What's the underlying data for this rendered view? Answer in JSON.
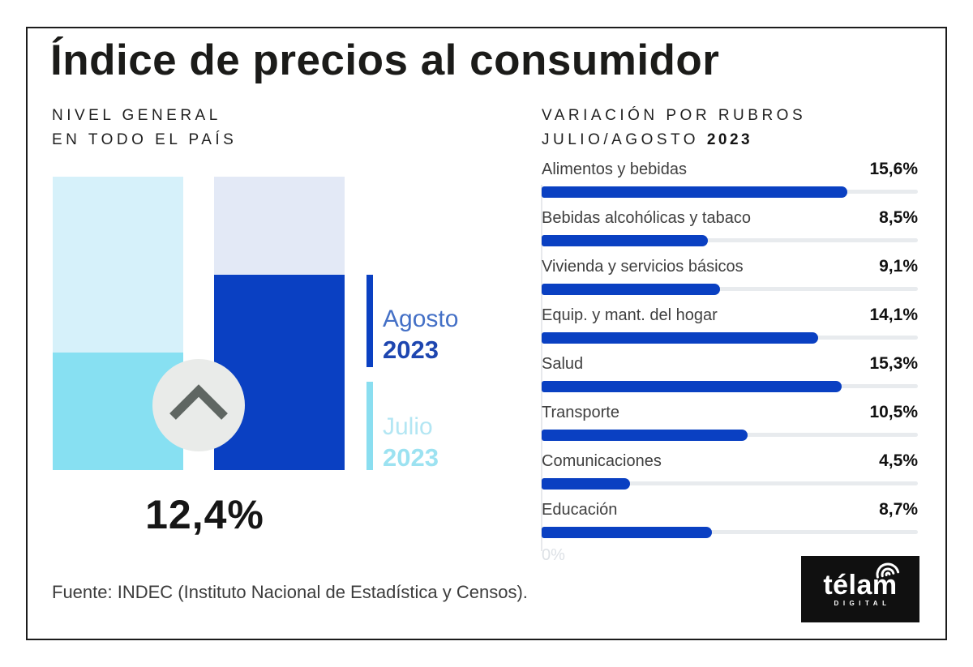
{
  "title": "Índice de precios al consumidor",
  "left_panel": {
    "subtitle_line1": "NIVEL GENERAL",
    "subtitle_line2": "EN TODO EL PAÍS",
    "value": "12,4%",
    "legend": [
      {
        "label": "Agosto",
        "year": "2023",
        "color": "#0a40c2"
      },
      {
        "label": "Julio",
        "year": "2023",
        "color": "#87e0f2"
      }
    ]
  },
  "right_panel": {
    "heading_line1": "VARIACIÓN POR RUBROS",
    "heading_line2": "JULIO/AGOSTO",
    "heading_year": "2023",
    "axis_label": "0%",
    "items": [
      {
        "label": "Alimentos y bebidas",
        "value": 15.6,
        "value_label": "15,6%"
      },
      {
        "label": "Bebidas alcohólicas y tabaco",
        "value": 8.5,
        "value_label": "8,5%"
      },
      {
        "label": "Vivienda y servicios básicos",
        "value": 9.1,
        "value_label": "9,1%"
      },
      {
        "label": "Equip. y mant. del hogar",
        "value": 14.1,
        "value_label": "14,1%"
      },
      {
        "label": "Salud",
        "value": 15.3,
        "value_label": "15,3%"
      },
      {
        "label": "Transporte",
        "value": 10.5,
        "value_label": "10,5%"
      },
      {
        "label": "Comunicaciones",
        "value": 4.5,
        "value_label": "4,5%"
      },
      {
        "label": "Educación",
        "value": 8.7,
        "value_label": "8,7%"
      }
    ]
  },
  "footer": {
    "source": "Fuente: INDEC (Instituto Nacional de Estadística y Censos).",
    "logo_text": "télam",
    "logo_sub": "DIGITAL"
  },
  "icons": {
    "increase_indicator": "chevron-up-icon",
    "logo_signal": "wifi-signal-icon"
  },
  "colors": {
    "accent_blue": "#0a40c2",
    "accent_cyan": "#87e0f2",
    "julio_bar_background": "#d6f1fa",
    "agosto_bar_background": "#e3e9f6",
    "track_gray": "#e8ebee",
    "circle_gray": "#e9ebe9",
    "chevron_gray": "#5f6662",
    "logo_background": "#101010"
  },
  "chart_data": [
    {
      "type": "bar",
      "title": "NIVEL GENERAL EN TODO EL PAÍS",
      "categories": [
        "Julio 2023",
        "Agosto 2023"
      ],
      "series": [
        {
          "name": "Nivel general",
          "values": [
            null,
            12.4
          ]
        }
      ],
      "value_label_shown": "12,4%",
      "legend_position": "right",
      "grid": false,
      "fill_fractions": [
        0.401,
        0.666
      ],
      "note": "Julio bar is unlabeled; only Agosto value 12,4% is printed"
    },
    {
      "type": "bar",
      "orientation": "horizontal",
      "title": "VARIACIÓN POR RUBROS JULIO/AGOSTO 2023",
      "categories": [
        "Alimentos y bebidas",
        "Bebidas alcohólicas y tabaco",
        "Vivienda y servicios básicos",
        "Equip. y mant. del hogar",
        "Salud",
        "Transporte",
        "Comunicaciones",
        "Educación"
      ],
      "values": [
        15.6,
        8.5,
        9.1,
        14.1,
        15.3,
        10.5,
        4.5,
        8.7
      ],
      "value_labels": [
        "15,6%",
        "8,5%",
        "9,1%",
        "14,1%",
        "15,3%",
        "10,5%",
        "4,5%",
        "8,7%"
      ],
      "xlabel": "",
      "ylabel": "",
      "xlim": [
        0,
        19.2
      ],
      "axis_tick_labels": [
        "0%"
      ],
      "grid": false
    }
  ]
}
